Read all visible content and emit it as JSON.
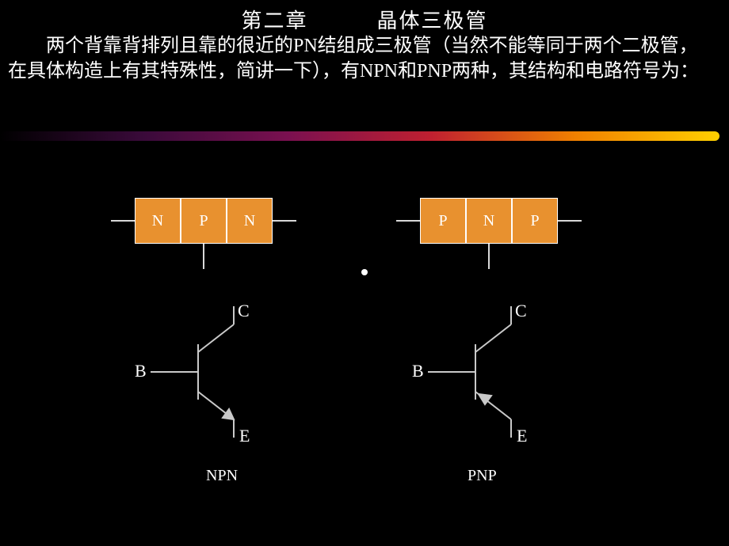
{
  "title": {
    "left": "第二章",
    "right": "晶体三极管",
    "color": "#ffffff",
    "fontsize": 26
  },
  "paragraph": {
    "text": "两个背靠背排列且靠的很近的PN结组成三极管（当然不能等同于两个二极管， 在具体构造上有其特殊性，简讲一下），有NPN和PNP两种，其结构和电路符号为：",
    "color": "#ffffff",
    "fontsize": 24
  },
  "gradient": {
    "stops": [
      "#000000",
      "#3a0a3a",
      "#7a1050",
      "#c02030",
      "#f08000",
      "#ffd000"
    ],
    "height": 12
  },
  "blocks": {
    "fill": "#e8912f",
    "border": "#ffffff",
    "label_color": "#ffffff",
    "label_fontsize": 20,
    "wire_color": "#d9d9d9",
    "npn": [
      "N",
      "P",
      "N"
    ],
    "pnp": [
      "P",
      "N",
      "P"
    ]
  },
  "symbols": {
    "stroke": "#c9c9c9",
    "stroke_width": 2,
    "label_color": "#ffffff",
    "label_fontsize": 22,
    "terminals": {
      "B": "B",
      "C": "C",
      "E": "E"
    },
    "npn_caption": "NPN",
    "pnp_caption": "PNP",
    "caption_fontsize": 20,
    "caption_color": "#ffffff"
  }
}
